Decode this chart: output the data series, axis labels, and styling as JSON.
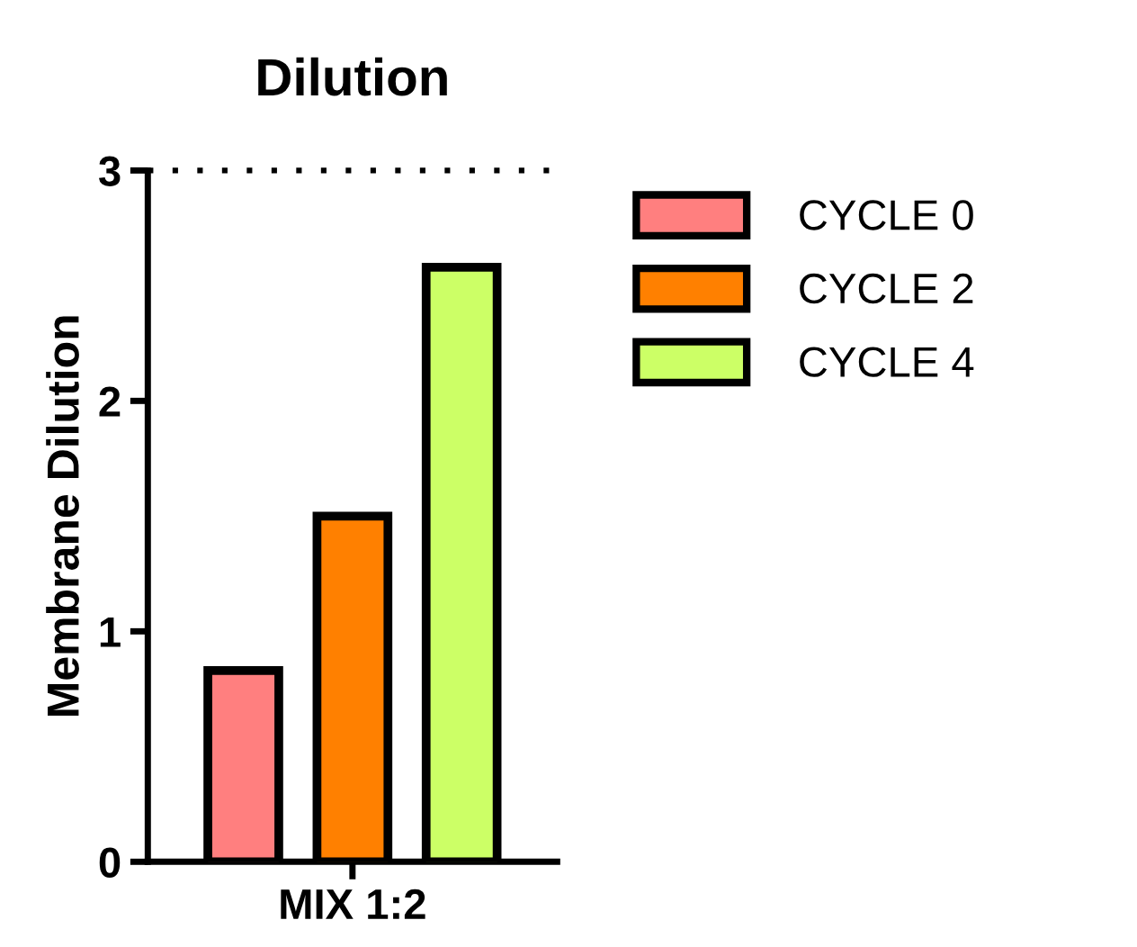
{
  "chart_data": {
    "type": "bar",
    "title": "Dilution",
    "ylabel": "Membrane Dilution",
    "categories": [
      "MIX 1:2"
    ],
    "series": [
      {
        "name": "CYCLE 0",
        "color": "#ff7f7f",
        "values": [
          0.83
        ]
      },
      {
        "name": "CYCLE 2",
        "color": "#ff8000",
        "values": [
          1.5
        ]
      },
      {
        "name": "CYCLE 4",
        "color": "#ccff66",
        "values": [
          2.58
        ]
      }
    ],
    "ylim": [
      0,
      3
    ],
    "yticks": [
      0,
      1,
      2,
      3
    ],
    "grid": false,
    "legend": "right",
    "ref_lines": [
      {
        "axis": "y",
        "value": 3,
        "line_style": "dotted",
        "color": "#000000"
      }
    ]
  }
}
